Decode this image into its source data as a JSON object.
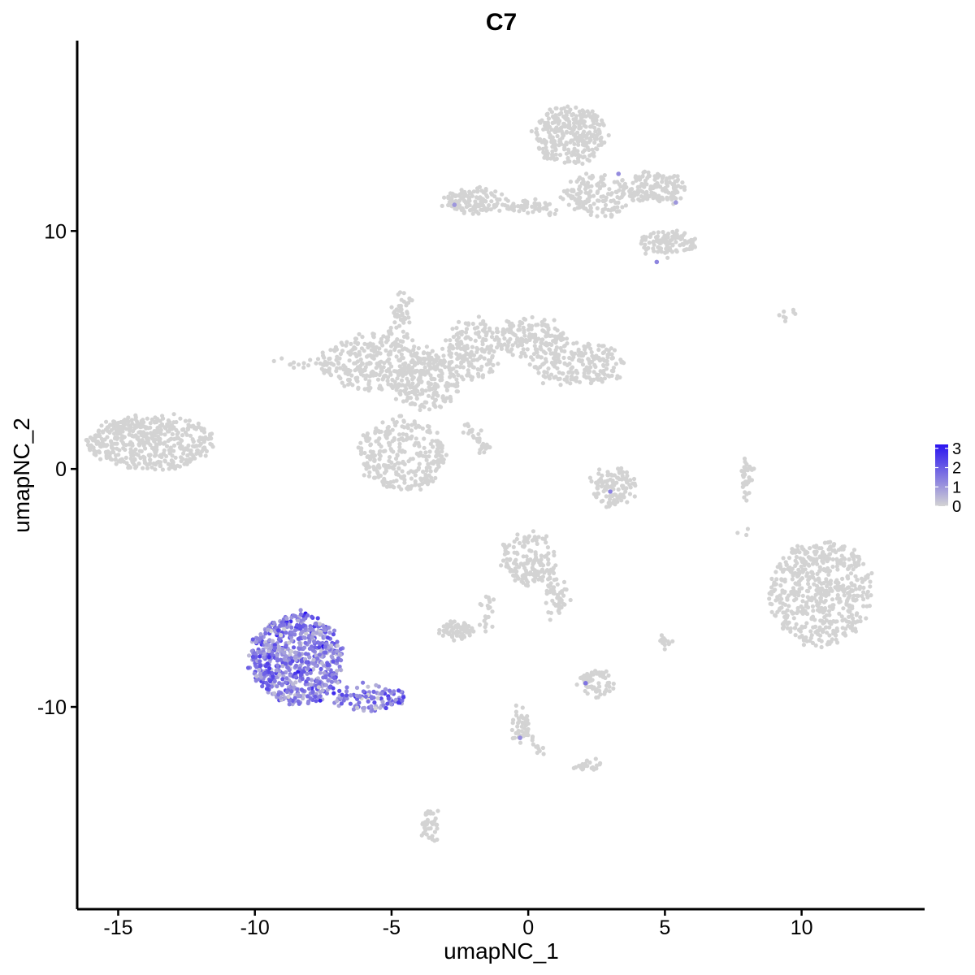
{
  "chart_data": {
    "type": "scatter",
    "title": "C7",
    "xlabel": "umapNC_1",
    "ylabel": "umapNC_2",
    "xlim": [
      -16.5,
      14.5
    ],
    "ylim": [
      -18.5,
      18
    ],
    "xticks": [
      -15,
      -10,
      -5,
      0,
      5,
      10
    ],
    "xtick_labels": [
      "-15",
      "-10",
      "-5",
      "0",
      "5",
      "10"
    ],
    "yticks": [
      -10,
      0,
      10
    ],
    "ytick_labels": [
      "-10",
      "0",
      "10"
    ],
    "grid": false,
    "legend": {
      "placement": "right",
      "type": "colorbar",
      "min": 0,
      "max": 3.2,
      "ticks": [
        0,
        1,
        2,
        3
      ],
      "tick_labels": [
        "0",
        "1",
        "2",
        "3"
      ],
      "low_color": "#d3d3d3",
      "high_color": "#2a14f0"
    },
    "point_color_zero": "#d3d3d3",
    "clusters": [
      {
        "cx": -13.8,
        "cy": 1.1,
        "rx": 2.3,
        "ry": 1.1,
        "n": 480,
        "expr": 0
      },
      {
        "cx": -5.5,
        "cy": 4.5,
        "rx": 2.2,
        "ry": 1.2,
        "n": 280,
        "expr": 0
      },
      {
        "cx": -4.6,
        "cy": 0.6,
        "rx": 1.6,
        "ry": 1.5,
        "n": 300,
        "expr": 0
      },
      {
        "cx": -3.7,
        "cy": 3.6,
        "rx": 1.2,
        "ry": 1.1,
        "n": 200,
        "expr": 0
      },
      {
        "cx": -2.0,
        "cy": 5.0,
        "rx": 1.1,
        "ry": 1.3,
        "n": 170,
        "expr": 0
      },
      {
        "cx": 0.0,
        "cy": 5.5,
        "rx": 1.3,
        "ry": 0.8,
        "n": 160,
        "expr": 0
      },
      {
        "cx": 1.8,
        "cy": 4.4,
        "rx": 1.7,
        "ry": 0.9,
        "n": 200,
        "expr": 0
      },
      {
        "cx": -4.6,
        "cy": 6.7,
        "rx": 0.3,
        "ry": 0.7,
        "n": 40,
        "expr": 0
      },
      {
        "cx": -2.0,
        "cy": 11.3,
        "rx": 1.1,
        "ry": 0.5,
        "n": 130,
        "expr": 0
      },
      {
        "cx": 1.5,
        "cy": 14.0,
        "rx": 1.3,
        "ry": 1.2,
        "n": 300,
        "expr": 0
      },
      {
        "cx": 2.5,
        "cy": 11.5,
        "rx": 1.3,
        "ry": 0.9,
        "n": 150,
        "expr": 0
      },
      {
        "cx": 4.6,
        "cy": 11.8,
        "rx": 1.2,
        "ry": 0.6,
        "n": 150,
        "expr": 0
      },
      {
        "cx": 5.1,
        "cy": 9.5,
        "rx": 1.0,
        "ry": 0.5,
        "n": 110,
        "expr": 0
      },
      {
        "cx": 0.0,
        "cy": 11.0,
        "rx": 0.8,
        "ry": 0.25,
        "n": 30,
        "expr": 0
      },
      {
        "cx": 10.7,
        "cy": -5.2,
        "rx": 1.9,
        "ry": 2.2,
        "n": 560,
        "expr": 0
      },
      {
        "cx": 0.0,
        "cy": -3.8,
        "rx": 1.0,
        "ry": 1.1,
        "n": 160,
        "expr": 0
      },
      {
        "cx": 1.0,
        "cy": -5.4,
        "rx": 0.35,
        "ry": 0.9,
        "n": 40,
        "expr": 0
      },
      {
        "cx": 3.1,
        "cy": -0.8,
        "rx": 0.8,
        "ry": 0.8,
        "n": 110,
        "expr": 0
      },
      {
        "cx": 8.0,
        "cy": -0.4,
        "rx": 0.25,
        "ry": 0.8,
        "n": 35,
        "expr": 0
      },
      {
        "cx": -2.6,
        "cy": -6.8,
        "rx": 0.6,
        "ry": 0.35,
        "n": 70,
        "expr": 0
      },
      {
        "cx": 2.5,
        "cy": -9.0,
        "rx": 0.6,
        "ry": 0.55,
        "n": 70,
        "expr": 0
      },
      {
        "cx": 5.0,
        "cy": -7.2,
        "rx": 0.2,
        "ry": 0.3,
        "n": 15,
        "expr": 0
      },
      {
        "cx": -3.6,
        "cy": -15.0,
        "rx": 0.35,
        "ry": 0.7,
        "n": 40,
        "expr": 0
      },
      {
        "cx": -0.3,
        "cy": -11.0,
        "rx": 0.3,
        "ry": 0.6,
        "n": 30,
        "expr": 0
      },
      {
        "cx": 2.2,
        "cy": -12.5,
        "rx": 0.5,
        "ry": 0.25,
        "n": 25,
        "expr": 0
      },
      {
        "cx": 9.4,
        "cy": 6.5,
        "rx": 0.6,
        "ry": 0.3,
        "n": 8,
        "expr": 0
      },
      {
        "cx": -8.5,
        "cy": -8.0,
        "rx": 1.7,
        "ry": 1.9,
        "n": 700,
        "expr": 1
      },
      {
        "cx": -5.8,
        "cy": -9.6,
        "rx": 1.3,
        "ry": 0.5,
        "n": 110,
        "expr": 1
      }
    ],
    "streaks": [
      {
        "x1": -9.0,
        "y1": 4.5,
        "x2": -5.0,
        "y2": 4.0,
        "n": 40
      },
      {
        "x1": -6.2,
        "y1": 3.8,
        "x2": -4.6,
        "y2": 6.5,
        "n": 30
      },
      {
        "x1": -2.4,
        "y1": 2.0,
        "x2": -1.5,
        "y2": 0.6,
        "n": 30
      },
      {
        "x1": -1.4,
        "y1": 11.2,
        "x2": 1.0,
        "y2": 10.8,
        "n": 30
      },
      {
        "x1": 0.8,
        "y1": -4.5,
        "x2": 1.2,
        "y2": -5.8,
        "n": 15
      },
      {
        "x1": -1.5,
        "y1": -5.0,
        "x2": -1.5,
        "y2": -7.0,
        "n": 20
      },
      {
        "x1": -0.6,
        "y1": -9.8,
        "x2": 0.5,
        "y2": -12.0,
        "n": 25
      },
      {
        "x1": 7.8,
        "y1": -2.5,
        "x2": 8.0,
        "y2": -2.8,
        "n": 3
      }
    ],
    "highlight_points": [
      {
        "x": 3.3,
        "y": 12.4,
        "v": 1.2
      },
      {
        "x": 5.4,
        "y": 11.2,
        "v": 1.0
      },
      {
        "x": 4.7,
        "y": 8.7,
        "v": 1.3
      },
      {
        "x": -2.7,
        "y": 11.1,
        "v": 1.0
      },
      {
        "x": 3.0,
        "y": -0.95,
        "v": 1.4
      },
      {
        "x": 2.1,
        "y": -9.0,
        "v": 1.6
      },
      {
        "x": -0.3,
        "y": -11.3,
        "v": 1.2
      }
    ]
  }
}
